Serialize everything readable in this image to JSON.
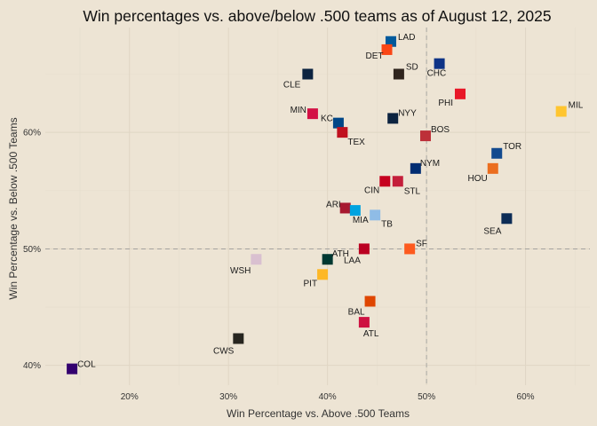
{
  "chart_data": {
    "type": "scatter",
    "title": "Win percentages vs. above/below .500 teams as of August 12, 2025",
    "xlabel": "Win Percentage vs. Above .500 Teams",
    "ylabel": "Win Percentage vs. Below .500 Teams",
    "xlim": [
      0.115,
      0.665
    ],
    "ylim": [
      0.383,
      0.69
    ],
    "x_ticks": [
      {
        "value": 0.2,
        "label": "20%"
      },
      {
        "value": 0.3,
        "label": "30%"
      },
      {
        "value": 0.4,
        "label": "40%"
      },
      {
        "value": 0.5,
        "label": "50%"
      },
      {
        "value": 0.6,
        "label": "60%"
      }
    ],
    "y_ticks": [
      {
        "value": 0.4,
        "label": "40%"
      },
      {
        "value": 0.5,
        "label": "50%"
      },
      {
        "value": 0.6,
        "label": "60%"
      }
    ],
    "reference_lines": {
      "x": 0.5,
      "y": 0.5
    },
    "grid": true,
    "points": [
      {
        "team": "LAD",
        "x": 0.464,
        "y": 0.678,
        "color": "#005a9c"
      },
      {
        "team": "DET",
        "x": 0.46,
        "y": 0.671,
        "color": "#fa4616"
      },
      {
        "team": "SD",
        "x": 0.472,
        "y": 0.65,
        "color": "#2f241d"
      },
      {
        "team": "CHC",
        "x": 0.513,
        "y": 0.659,
        "color": "#0e3386"
      },
      {
        "team": "CLE",
        "x": 0.38,
        "y": 0.65,
        "color": "#0c2340"
      },
      {
        "team": "PHI",
        "x": 0.534,
        "y": 0.633,
        "color": "#e81828"
      },
      {
        "team": "MIL",
        "x": 0.636,
        "y": 0.618,
        "color": "#ffc52f"
      },
      {
        "team": "MIN",
        "x": 0.385,
        "y": 0.616,
        "color": "#d31145"
      },
      {
        "team": "KC",
        "x": 0.411,
        "y": 0.608,
        "color": "#004687"
      },
      {
        "team": "NYY",
        "x": 0.466,
        "y": 0.612,
        "color": "#0c2340"
      },
      {
        "team": "TEX",
        "x": 0.415,
        "y": 0.6,
        "color": "#c0111f"
      },
      {
        "team": "BOS",
        "x": 0.499,
        "y": 0.597,
        "color": "#bd3039"
      },
      {
        "team": "TOR",
        "x": 0.571,
        "y": 0.582,
        "color": "#134a8e"
      },
      {
        "team": "HOU",
        "x": 0.567,
        "y": 0.569,
        "color": "#eb6e1f"
      },
      {
        "team": "NYM",
        "x": 0.489,
        "y": 0.569,
        "color": "#002d72"
      },
      {
        "team": "CIN",
        "x": 0.458,
        "y": 0.558,
        "color": "#c6011f"
      },
      {
        "team": "STL",
        "x": 0.471,
        "y": 0.558,
        "color": "#c41e3a"
      },
      {
        "team": "ARI",
        "x": 0.418,
        "y": 0.535,
        "color": "#a71930"
      },
      {
        "team": "MIA",
        "x": 0.428,
        "y": 0.533,
        "color": "#00a3e0"
      },
      {
        "team": "TB",
        "x": 0.448,
        "y": 0.529,
        "color": "#8fbce6"
      },
      {
        "team": "SEA",
        "x": 0.581,
        "y": 0.526,
        "color": "#0c2c56"
      },
      {
        "team": "LAA",
        "x": 0.437,
        "y": 0.5,
        "color": "#ba0021"
      },
      {
        "team": "SF",
        "x": 0.483,
        "y": 0.5,
        "color": "#fd5a1e"
      },
      {
        "team": "ATH",
        "x": 0.4,
        "y": 0.491,
        "color": "#003831"
      },
      {
        "team": "WSH",
        "x": 0.328,
        "y": 0.491,
        "color": "#d9c0d0"
      },
      {
        "team": "PIT",
        "x": 0.395,
        "y": 0.478,
        "color": "#fdb827"
      },
      {
        "team": "BAL",
        "x": 0.443,
        "y": 0.455,
        "color": "#df4601"
      },
      {
        "team": "ATL",
        "x": 0.437,
        "y": 0.437,
        "color": "#ce1141"
      },
      {
        "team": "CWS",
        "x": 0.31,
        "y": 0.423,
        "color": "#27251f"
      },
      {
        "team": "COL",
        "x": 0.142,
        "y": 0.397,
        "color": "#33006f"
      }
    ]
  }
}
